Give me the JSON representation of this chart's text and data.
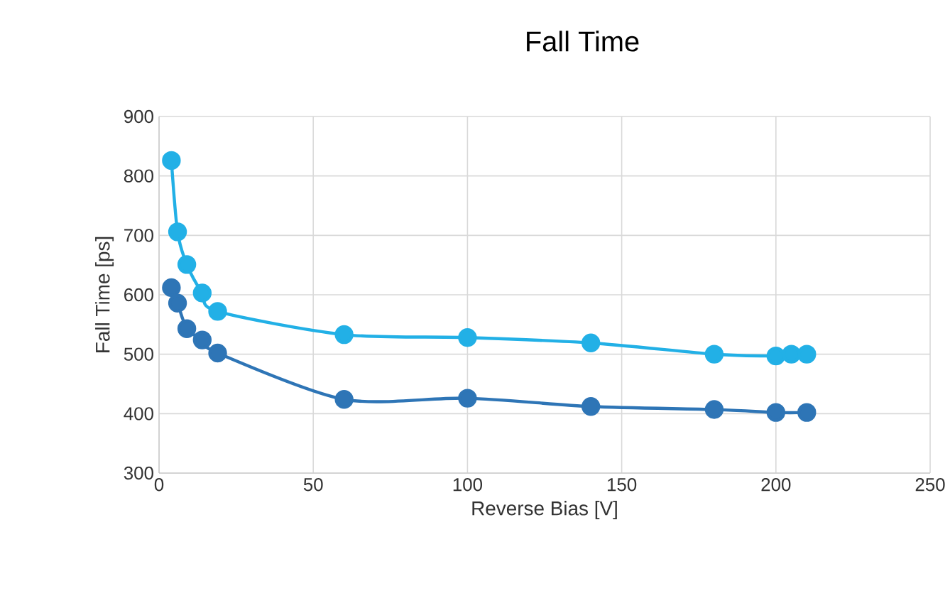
{
  "chart_data": {
    "type": "line",
    "title": "Fall Time",
    "xlabel": "Reverse Bias [V]",
    "ylabel": "Fall Time [ps]",
    "xlim": [
      0,
      250
    ],
    "xticks": [
      0,
      50,
      100,
      150,
      200,
      250
    ],
    "ylim": [
      300,
      900
    ],
    "yticks": [
      300,
      400,
      500,
      600,
      700,
      800,
      900
    ],
    "grid": true,
    "marker": "circle",
    "line_style": "solid",
    "series": [
      {
        "color": "#22b0e6",
        "x": [
          4,
          6,
          9,
          14,
          19,
          60,
          100,
          140,
          180,
          200,
          205,
          210
        ],
        "values": [
          826,
          706,
          651,
          603,
          572,
          533,
          528,
          519,
          500,
          497,
          500,
          500
        ]
      },
      {
        "color": "#2e75b6",
        "x": [
          4,
          6,
          9,
          14,
          19,
          60,
          100,
          140,
          180,
          200,
          210
        ],
        "values": [
          612,
          586,
          543,
          524,
          502,
          424,
          426,
          412,
          407,
          402,
          402
        ]
      }
    ]
  }
}
